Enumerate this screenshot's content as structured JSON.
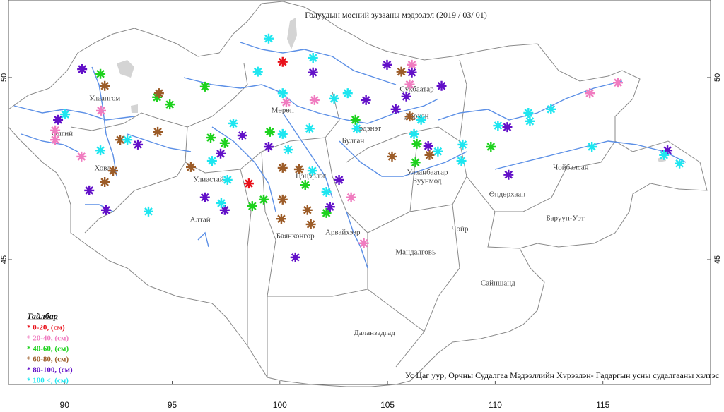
{
  "map": {
    "title": "Голуудын мөсний зузааны мэдээлэл (2019 / 03/ 01)",
    "credit": "Ус Цаг уур, Орчны Судалгаа Мэдээллийн Хvрээлэн- Гадаргын усны судалгааны хэлтэс",
    "xlim": [
      87.4,
      120
    ],
    "ylim": [
      41.57,
      52.13
    ],
    "xticks": [
      90,
      95,
      100,
      105,
      110,
      115
    ],
    "yticks": [
      50,
      45
    ],
    "legend": {
      "title": "Тайлбар",
      "classes": [
        {
          "label": "* 0-20, (см)",
          "color": "#e8101a"
        },
        {
          "label": "* 20-40, (см)",
          "color": "#f07cc0"
        },
        {
          "label": "* 40-60, (см)",
          "color": "#1ed21e"
        },
        {
          "label": "* 60-80, (см)",
          "color": "#9c5c28"
        },
        {
          "label": "* 80-100, (см)",
          "color": "#6210c8"
        },
        {
          "label": "* 100 <, (см)",
          "color": "#1ee6f0"
        }
      ]
    },
    "places": [
      {
        "name": "Улаангом",
        "lon": 91.87,
        "lat": 49.42
      },
      {
        "name": "Өлгий",
        "lon": 89.9,
        "lat": 48.45
      },
      {
        "name": "Ховд",
        "lon": 91.77,
        "lat": 47.5
      },
      {
        "name": "Мөрөн",
        "lon": 100.13,
        "lat": 49.09
      },
      {
        "name": "Эрдэнэт",
        "lon": 104.07,
        "lat": 48.59
      },
      {
        "name": "Булган",
        "lon": 103.4,
        "lat": 48.26
      },
      {
        "name": "Улаанбаатар",
        "lon": 106.85,
        "lat": 47.38
      },
      {
        "name": "Зуунмод",
        "lon": 106.85,
        "lat": 47.15
      },
      {
        "name": "Дархан",
        "lon": 106.36,
        "lat": 48.93
      },
      {
        "name": "Сүхбаатар",
        "lon": 106.36,
        "lat": 49.67
      },
      {
        "name": "Улиастай",
        "lon": 96.69,
        "lat": 47.19
      },
      {
        "name": "Алтай",
        "lon": 96.3,
        "lat": 46.09
      },
      {
        "name": "Цэцэрлэг",
        "lon": 101.44,
        "lat": 47.29
      },
      {
        "name": "Баянхонгор",
        "lon": 100.72,
        "lat": 45.64
      },
      {
        "name": "Арвайхээр",
        "lon": 102.92,
        "lat": 45.74
      },
      {
        "name": "Мандалговь",
        "lon": 106.3,
        "lat": 45.19
      },
      {
        "name": "Чойр",
        "lon": 108.36,
        "lat": 45.83
      },
      {
        "name": "Өндөрхаан",
        "lon": 110.56,
        "lat": 46.78
      },
      {
        "name": "Чойбалсан",
        "lon": 113.51,
        "lat": 47.52
      },
      {
        "name": "Баруун-Урт",
        "lon": 113.25,
        "lat": 46.12
      },
      {
        "name": "Сайншанд",
        "lon": 110.13,
        "lat": 44.34
      },
      {
        "name": "Даланзадгад",
        "lon": 104.39,
        "lat": 42.98
      }
    ],
    "stations": [
      {
        "lon": 100.13,
        "lat": 50.43,
        "c": 0
      },
      {
        "lon": 98.56,
        "lat": 47.09,
        "c": 0
      },
      {
        "lon": 89.57,
        "lat": 48.55,
        "c": 1
      },
      {
        "lon": 89.57,
        "lat": 48.29,
        "c": 1
      },
      {
        "lon": 90.79,
        "lat": 47.83,
        "c": 1
      },
      {
        "lon": 91.7,
        "lat": 49.09,
        "c": 1
      },
      {
        "lon": 100.3,
        "lat": 49.32,
        "c": 1
      },
      {
        "lon": 101.61,
        "lat": 49.38,
        "c": 1
      },
      {
        "lon": 106.13,
        "lat": 50.35,
        "c": 1
      },
      {
        "lon": 106.03,
        "lat": 49.81,
        "c": 1
      },
      {
        "lon": 103.31,
        "lat": 46.71,
        "c": 1
      },
      {
        "lon": 103.9,
        "lat": 45.45,
        "c": 1
      },
      {
        "lon": 114.39,
        "lat": 49.57,
        "c": 1
      },
      {
        "lon": 115.7,
        "lat": 49.86,
        "c": 1
      },
      {
        "lon": 91.67,
        "lat": 50.1,
        "c": 2
      },
      {
        "lon": 94.3,
        "lat": 49.46,
        "c": 2
      },
      {
        "lon": 94.89,
        "lat": 49.26,
        "c": 2
      },
      {
        "lon": 96.52,
        "lat": 49.75,
        "c": 2
      },
      {
        "lon": 96.79,
        "lat": 48.35,
        "c": 2
      },
      {
        "lon": 97.44,
        "lat": 48.2,
        "c": 2
      },
      {
        "lon": 99.54,
        "lat": 48.51,
        "c": 2
      },
      {
        "lon": 99.25,
        "lat": 46.65,
        "c": 2
      },
      {
        "lon": 98.72,
        "lat": 46.47,
        "c": 2
      },
      {
        "lon": 101.18,
        "lat": 47.05,
        "c": 2
      },
      {
        "lon": 102.16,
        "lat": 46.28,
        "c": 2
      },
      {
        "lon": 103.51,
        "lat": 48.84,
        "c": 2
      },
      {
        "lon": 106.36,
        "lat": 48.18,
        "c": 2
      },
      {
        "lon": 106.3,
        "lat": 47.67,
        "c": 2
      },
      {
        "lon": 109.8,
        "lat": 48.1,
        "c": 2
      },
      {
        "lon": 91.87,
        "lat": 49.77,
        "c": 3
      },
      {
        "lon": 94.39,
        "lat": 49.57,
        "c": 3
      },
      {
        "lon": 94.33,
        "lat": 48.51,
        "c": 3
      },
      {
        "lon": 92.59,
        "lat": 48.29,
        "c": 3
      },
      {
        "lon": 92.26,
        "lat": 47.44,
        "c": 3
      },
      {
        "lon": 91.87,
        "lat": 47.13,
        "c": 3
      },
      {
        "lon": 95.87,
        "lat": 47.54,
        "c": 3
      },
      {
        "lon": 100.13,
        "lat": 47.52,
        "c": 3
      },
      {
        "lon": 100.89,
        "lat": 47.48,
        "c": 3
      },
      {
        "lon": 100.13,
        "lat": 46.65,
        "c": 3
      },
      {
        "lon": 101.28,
        "lat": 46.36,
        "c": 3
      },
      {
        "lon": 101.44,
        "lat": 45.97,
        "c": 3
      },
      {
        "lon": 100.07,
        "lat": 46.12,
        "c": 3
      },
      {
        "lon": 105.21,
        "lat": 47.83,
        "c": 3
      },
      {
        "lon": 105.64,
        "lat": 50.16,
        "c": 3
      },
      {
        "lon": 106.03,
        "lat": 48.93,
        "c": 3
      },
      {
        "lon": 106.95,
        "lat": 47.87,
        "c": 3
      },
      {
        "lon": 90.82,
        "lat": 50.23,
        "c": 4
      },
      {
        "lon": 89.7,
        "lat": 48.84,
        "c": 4
      },
      {
        "lon": 91.15,
        "lat": 46.9,
        "c": 4
      },
      {
        "lon": 91.93,
        "lat": 46.36,
        "c": 4
      },
      {
        "lon": 93.41,
        "lat": 48.16,
        "c": 4
      },
      {
        "lon": 96.52,
        "lat": 46.71,
        "c": 4
      },
      {
        "lon": 97.44,
        "lat": 46.36,
        "c": 4
      },
      {
        "lon": 97.25,
        "lat": 47.91,
        "c": 4
      },
      {
        "lon": 98.26,
        "lat": 48.41,
        "c": 4
      },
      {
        "lon": 99.48,
        "lat": 48.1,
        "c": 4
      },
      {
        "lon": 101.54,
        "lat": 50.14,
        "c": 4
      },
      {
        "lon": 100.72,
        "lat": 45.06,
        "c": 4
      },
      {
        "lon": 102.75,
        "lat": 47.19,
        "c": 4
      },
      {
        "lon": 102.33,
        "lat": 46.45,
        "c": 4
      },
      {
        "lon": 104.0,
        "lat": 49.38,
        "c": 4
      },
      {
        "lon": 104.98,
        "lat": 50.35,
        "c": 4
      },
      {
        "lon": 106.13,
        "lat": 50.14,
        "c": 4
      },
      {
        "lon": 105.38,
        "lat": 49.13,
        "c": 4
      },
      {
        "lon": 105.87,
        "lat": 49.48,
        "c": 4
      },
      {
        "lon": 106.89,
        "lat": 48.12,
        "c": 4
      },
      {
        "lon": 107.51,
        "lat": 49.77,
        "c": 4
      },
      {
        "lon": 110.56,
        "lat": 48.64,
        "c": 4
      },
      {
        "lon": 110.62,
        "lat": 47.33,
        "c": 4
      },
      {
        "lon": 118.0,
        "lat": 48.0,
        "c": 4
      },
      {
        "lon": 99.48,
        "lat": 51.07,
        "c": 5
      },
      {
        "lon": 101.54,
        "lat": 50.54,
        "c": 5
      },
      {
        "lon": 98.98,
        "lat": 50.16,
        "c": 5
      },
      {
        "lon": 100.13,
        "lat": 49.57,
        "c": 5
      },
      {
        "lon": 102.52,
        "lat": 49.42,
        "c": 5
      },
      {
        "lon": 103.15,
        "lat": 49.57,
        "c": 5
      },
      {
        "lon": 100.13,
        "lat": 48.45,
        "c": 5
      },
      {
        "lon": 100.39,
        "lat": 48.02,
        "c": 5
      },
      {
        "lon": 101.38,
        "lat": 48.6,
        "c": 5
      },
      {
        "lon": 101.51,
        "lat": 47.44,
        "c": 5
      },
      {
        "lon": 102.16,
        "lat": 46.86,
        "c": 5
      },
      {
        "lon": 97.84,
        "lat": 48.74,
        "c": 5
      },
      {
        "lon": 96.85,
        "lat": 47.71,
        "c": 5
      },
      {
        "lon": 97.57,
        "lat": 47.19,
        "c": 5
      },
      {
        "lon": 97.28,
        "lat": 46.55,
        "c": 5
      },
      {
        "lon": 93.9,
        "lat": 46.32,
        "c": 5
      },
      {
        "lon": 92.92,
        "lat": 48.29,
        "c": 5
      },
      {
        "lon": 91.67,
        "lat": 48.0,
        "c": 5
      },
      {
        "lon": 90.03,
        "lat": 48.99,
        "c": 5
      },
      {
        "lon": 103.57,
        "lat": 48.6,
        "c": 5
      },
      {
        "lon": 106.23,
        "lat": 48.45,
        "c": 5
      },
      {
        "lon": 106.56,
        "lat": 48.84,
        "c": 5
      },
      {
        "lon": 107.34,
        "lat": 47.97,
        "c": 5
      },
      {
        "lon": 108.49,
        "lat": 48.16,
        "c": 5
      },
      {
        "lon": 108.43,
        "lat": 47.71,
        "c": 5
      },
      {
        "lon": 110.13,
        "lat": 48.68,
        "c": 5
      },
      {
        "lon": 111.54,
        "lat": 49.03,
        "c": 5
      },
      {
        "lon": 111.61,
        "lat": 48.8,
        "c": 5
      },
      {
        "lon": 112.59,
        "lat": 49.13,
        "c": 5
      },
      {
        "lon": 114.49,
        "lat": 48.1,
        "c": 5
      },
      {
        "lon": 117.84,
        "lat": 47.87,
        "c": 5
      },
      {
        "lon": 118.56,
        "lat": 47.64,
        "c": 5
      }
    ]
  }
}
